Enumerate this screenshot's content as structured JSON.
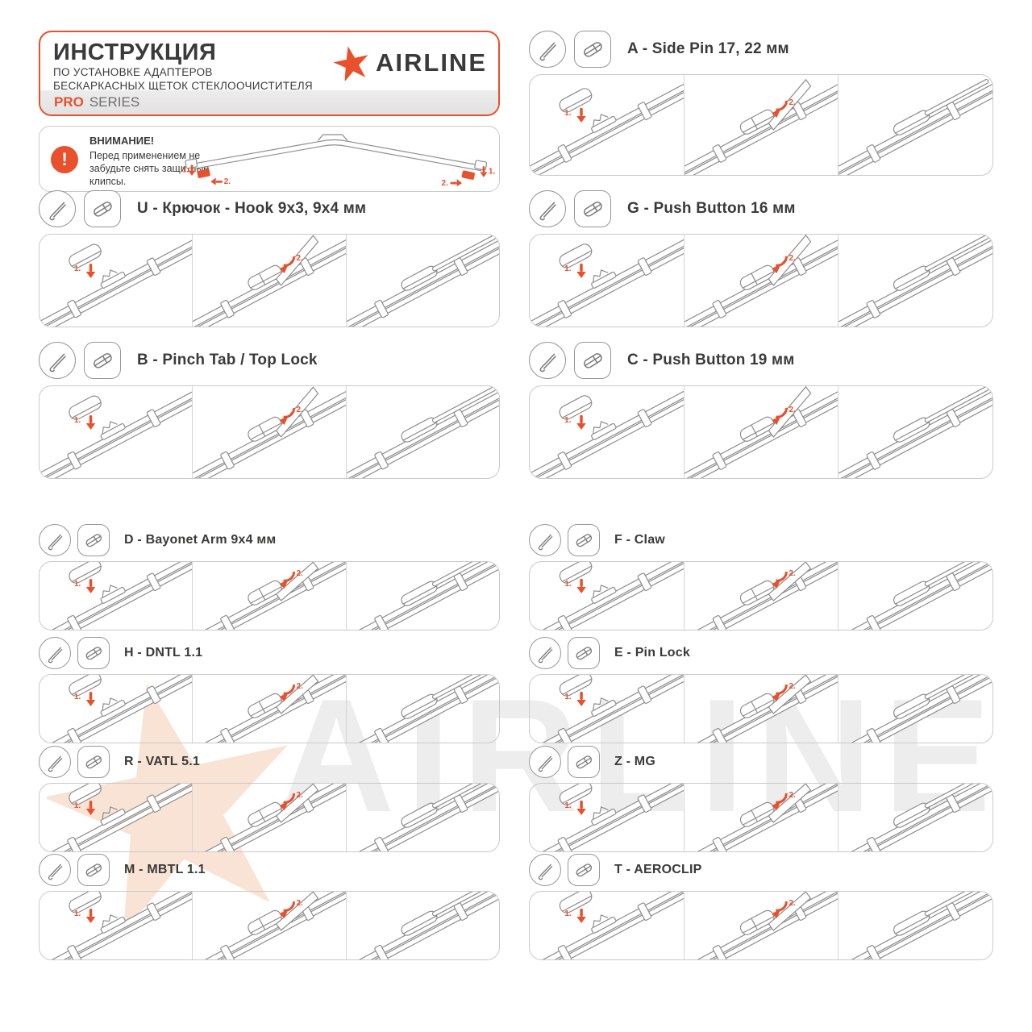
{
  "header": {
    "title": "ИНСТРУКЦИЯ",
    "subtitle_line1": "ПО УСТАНОВКЕ АДАПТЕРОВ",
    "subtitle_line2": "БЕСКАРКАСНЫХ ЩЕТОК СТЕКЛООЧИСТИТЕЛЯ",
    "series_label": "PRO",
    "series_suffix": "SERIES",
    "brand": "AIRLINE"
  },
  "warning": {
    "icon": "!",
    "title": "ВНИМАНИЕ!",
    "text": "Перед применением не забудьте снять защитные клипсы.",
    "clip_labels": {
      "left_top": "1.",
      "left_bottom": "2.",
      "right_top": "1.",
      "right_bottom": "2."
    }
  },
  "watermark": {
    "brand": "AIRLINE"
  },
  "colors": {
    "accent": "#E9502C",
    "text_dark": "#3A3A39",
    "border_light": "#C9C9C9",
    "line_art": "#8D8D8D",
    "watermark_orange": "#F8E3D5",
    "watermark_gray": "#EDEDED"
  },
  "sections": [
    {
      "id": "U",
      "column": "left",
      "title": "U - Крючок - Hook 9x3, 9x4 мм",
      "size": "lg",
      "step_labels": [
        "1.",
        "2.",
        ""
      ]
    },
    {
      "id": "B",
      "column": "left",
      "title": "B - Pinch Tab / Top Lock",
      "size": "lg",
      "step_labels": [
        "1.",
        "2.",
        ""
      ]
    },
    {
      "id": "D",
      "column": "left",
      "title": "D - Bayonet Arm 9x4 мм",
      "size": "sm",
      "step_labels": [
        "1.",
        "2.",
        ""
      ]
    },
    {
      "id": "H",
      "column": "left",
      "title": "H - DNTL 1.1",
      "size": "sm",
      "step_labels": [
        "1.",
        "2.",
        ""
      ]
    },
    {
      "id": "R",
      "column": "left",
      "title": "R - VATL 5.1",
      "size": "sm",
      "step_labels": [
        "1.",
        "2.",
        ""
      ]
    },
    {
      "id": "M",
      "column": "left",
      "title": "M - MBTL 1.1",
      "size": "sm",
      "step_labels": [
        "1.",
        "2.",
        ""
      ]
    },
    {
      "id": "A",
      "column": "right",
      "title": "A - Side Pin 17, 22 мм",
      "size": "lg",
      "step_labels": [
        "1.",
        "2.",
        ""
      ]
    },
    {
      "id": "G",
      "column": "right",
      "title": "G - Push Button 16 мм",
      "size": "lg",
      "step_labels": [
        "1.",
        "2.",
        ""
      ]
    },
    {
      "id": "C",
      "column": "right",
      "title": "C - Push Button 19 мм",
      "size": "lg",
      "step_labels": [
        "1.",
        "2.",
        ""
      ]
    },
    {
      "id": "F",
      "column": "right",
      "title": "F - Claw",
      "size": "sm",
      "step_labels": [
        "1.",
        "2.",
        ""
      ]
    },
    {
      "id": "E",
      "column": "right",
      "title": "E - Pin Lock",
      "size": "sm",
      "step_labels": [
        "1.",
        "2.",
        ""
      ]
    },
    {
      "id": "Z",
      "column": "right",
      "title": "Z - MG",
      "size": "sm",
      "step_labels": [
        "1.",
        "2.",
        ""
      ]
    },
    {
      "id": "T",
      "column": "right",
      "title": "T - AEROCLIP",
      "size": "sm",
      "step_labels": [
        "1.",
        "2.",
        ""
      ]
    }
  ]
}
